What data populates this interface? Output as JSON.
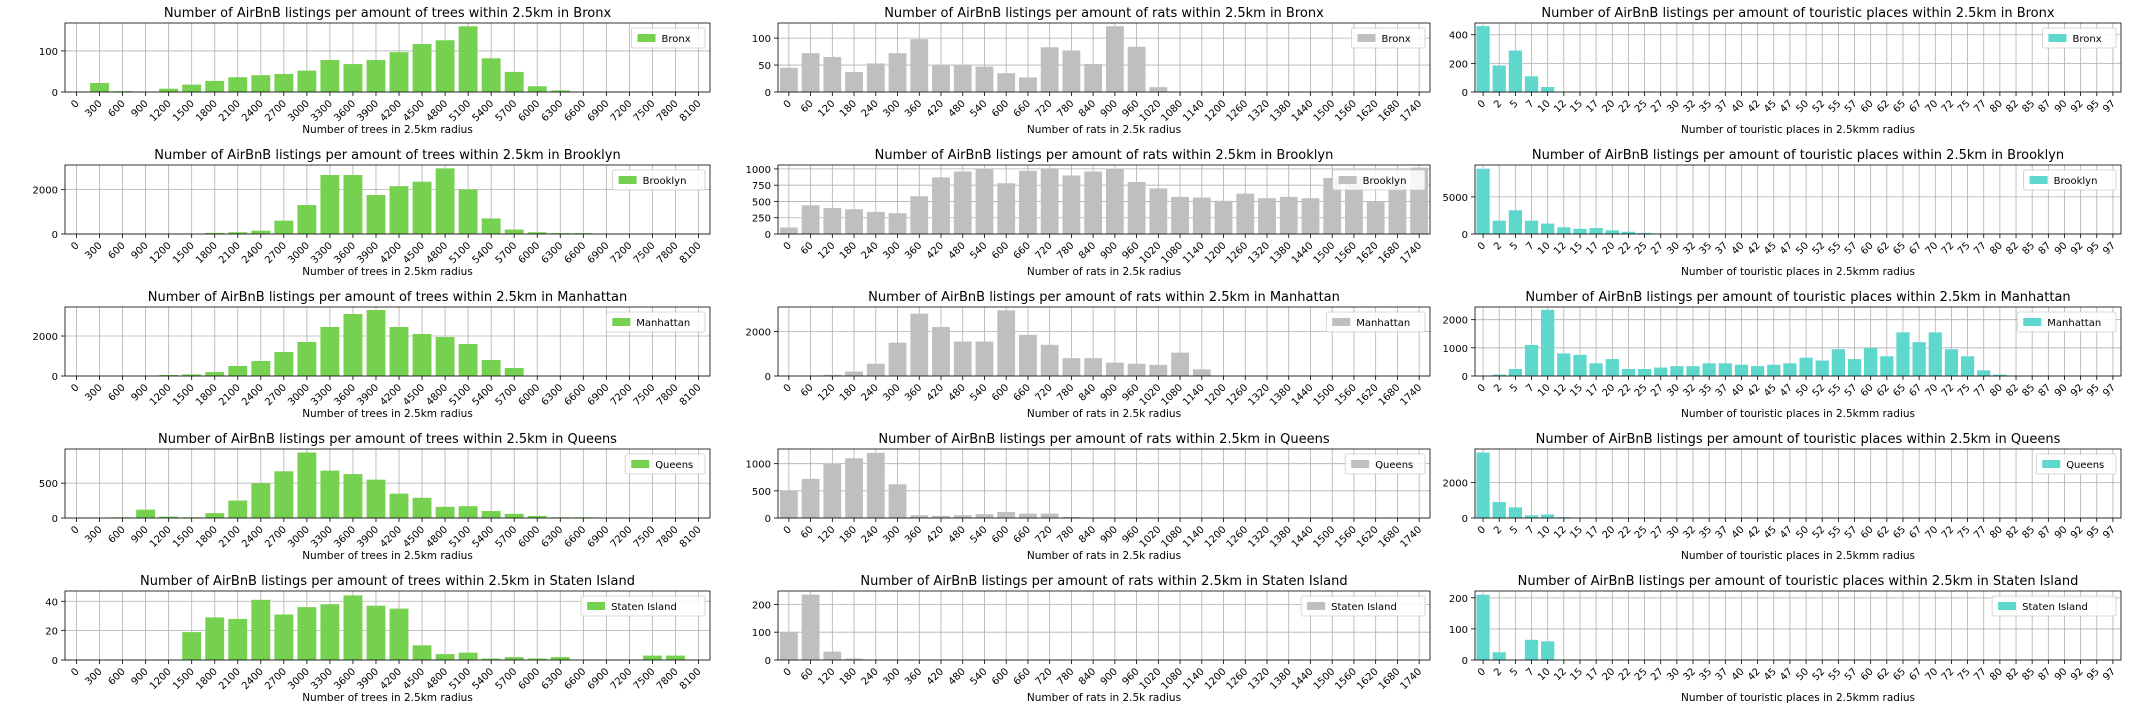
{
  "chart_data": [
    {
      "type": "bar",
      "title": "Number of AirBnB listings per amount of trees within 2.5km in Bronx",
      "xlabel": "Number of trees in 2.5km radius",
      "legend": "Bronx",
      "legend_position": "top-right",
      "color": "#77d150",
      "grid": true,
      "categories": [
        "0",
        "300",
        "600",
        "900",
        "1200",
        "1500",
        "1800",
        "2100",
        "2400",
        "2700",
        "3000",
        "3300",
        "3600",
        "3900",
        "4200",
        "4500",
        "4800",
        "5100",
        "5400",
        "5700",
        "6000",
        "6300",
        "6600",
        "6900",
        "7200",
        "7500",
        "7800",
        "8100"
      ],
      "values": [
        0,
        22,
        2,
        0,
        8,
        18,
        27,
        36,
        41,
        44,
        52,
        78,
        68,
        78,
        97,
        117,
        126,
        160,
        82,
        49,
        14,
        4,
        0,
        0,
        0,
        0,
        0,
        0
      ],
      "yticks": [
        0,
        100
      ],
      "ylim": [
        0,
        168
      ]
    },
    {
      "type": "bar",
      "title": "Number of AirBnB listings per amount of rats within 2.5km in Bronx",
      "xlabel": "Number of rats in 2.5k radius",
      "legend": "Bronx",
      "legend_position": "top-right",
      "color": "#bfbfbf",
      "grid": true,
      "categories": [
        "0",
        "60",
        "120",
        "180",
        "240",
        "300",
        "360",
        "420",
        "480",
        "540",
        "600",
        "660",
        "720",
        "780",
        "840",
        "900",
        "960",
        "1020",
        "1080",
        "1140",
        "1200",
        "1260",
        "1320",
        "1380",
        "1440",
        "1500",
        "1560",
        "1620",
        "1680",
        "1740"
      ],
      "values": [
        45,
        72,
        65,
        37,
        53,
        72,
        98,
        50,
        50,
        47,
        35,
        27,
        83,
        77,
        52,
        122,
        84,
        9,
        0,
        0,
        0,
        0,
        0,
        0,
        0,
        0,
        0,
        0,
        0,
        0
      ],
      "yticks": [
        0,
        50,
        100
      ],
      "ylim": [
        0,
        128
      ]
    },
    {
      "type": "bar",
      "title": "Number of AirBnB listings per amount of touristic places within 2.5km in Bronx",
      "xlabel": "Number of touristic places in 2.5kmm radius",
      "legend": "Bronx",
      "legend_position": "top-right",
      "color": "#5ed8cc",
      "grid": true,
      "categories": [
        "0",
        "2",
        "5",
        "7",
        "10",
        "12",
        "15",
        "17",
        "20",
        "22",
        "25",
        "27",
        "30",
        "32",
        "35",
        "37",
        "40",
        "42",
        "45",
        "47",
        "50",
        "52",
        "55",
        "57",
        "60",
        "62",
        "65",
        "67",
        "70",
        "72",
        "75",
        "77",
        "80",
        "82",
        "85",
        "87",
        "90",
        "92",
        "95",
        "97"
      ],
      "values": [
        460,
        185,
        290,
        110,
        35,
        0,
        0,
        0,
        0,
        0,
        0,
        0,
        0,
        0,
        0,
        0,
        0,
        0,
        0,
        0,
        0,
        0,
        0,
        0,
        0,
        0,
        0,
        0,
        0,
        0,
        0,
        0,
        0,
        0,
        0,
        0,
        0,
        0,
        0,
        0
      ],
      "yticks": [
        0,
        200,
        400
      ],
      "ylim": [
        0,
        482
      ]
    },
    {
      "type": "bar",
      "title": "Number of AirBnB listings per amount of trees within 2.5km in Brooklyn",
      "xlabel": "Number of trees in 2.5km radius",
      "legend": "Brooklyn",
      "legend_position": "top-right",
      "color": "#77d150",
      "grid": true,
      "categories": [
        "0",
        "300",
        "600",
        "900",
        "1200",
        "1500",
        "1800",
        "2100",
        "2400",
        "2700",
        "3000",
        "3300",
        "3600",
        "3900",
        "4200",
        "4500",
        "4800",
        "5100",
        "5400",
        "5700",
        "6000",
        "6300",
        "6600",
        "6900",
        "7200",
        "7500",
        "7800",
        "8100"
      ],
      "values": [
        0,
        0,
        0,
        0,
        0,
        0,
        50,
        80,
        150,
        600,
        1300,
        2650,
        2650,
        1750,
        2150,
        2350,
        2950,
        2000,
        700,
        200,
        80,
        40,
        40,
        0,
        0,
        0,
        0,
        0
      ],
      "yticks": [
        0,
        2000
      ],
      "ylim": [
        0,
        3100
      ]
    },
    {
      "type": "bar",
      "title": "Number of AirBnB listings per amount of rats within 2.5km in Brooklyn",
      "xlabel": "Number of rats in 2.5k radius",
      "legend": "Brooklyn",
      "legend_position": "top-right",
      "color": "#bfbfbf",
      "grid": true,
      "categories": [
        "0",
        "60",
        "120",
        "180",
        "240",
        "300",
        "360",
        "420",
        "480",
        "540",
        "600",
        "660",
        "720",
        "780",
        "840",
        "900",
        "960",
        "1020",
        "1080",
        "1140",
        "1200",
        "1260",
        "1320",
        "1380",
        "1440",
        "1500",
        "1560",
        "1620",
        "1680",
        "1740"
      ],
      "values": [
        100,
        440,
        400,
        380,
        340,
        320,
        580,
        870,
        960,
        1000,
        780,
        970,
        1010,
        900,
        960,
        1000,
        800,
        700,
        570,
        560,
        510,
        620,
        550,
        570,
        550,
        860,
        880,
        490,
        860,
        1020
      ],
      "yticks": [
        0,
        250,
        500,
        750,
        1000
      ],
      "ylim": [
        0,
        1060
      ]
    },
    {
      "type": "bar",
      "title": "Number of AirBnB listings per amount of touristic places within 2.5km in Brooklyn",
      "xlabel": "Number of touristic places in 2.5kmm radius",
      "legend": "Brooklyn",
      "legend_position": "top-right",
      "color": "#5ed8cc",
      "grid": true,
      "categories": [
        "0",
        "2",
        "5",
        "7",
        "10",
        "12",
        "15",
        "17",
        "20",
        "22",
        "25",
        "27",
        "30",
        "32",
        "35",
        "37",
        "40",
        "42",
        "45",
        "47",
        "50",
        "52",
        "55",
        "57",
        "60",
        "62",
        "65",
        "67",
        "70",
        "72",
        "75",
        "77",
        "80",
        "82",
        "85",
        "87",
        "90",
        "92",
        "95",
        "97"
      ],
      "values": [
        8800,
        1800,
        3200,
        1800,
        1400,
        900,
        700,
        800,
        500,
        300,
        150,
        0,
        0,
        0,
        0,
        0,
        0,
        0,
        0,
        0,
        0,
        0,
        0,
        0,
        0,
        0,
        0,
        0,
        0,
        0,
        0,
        0,
        0,
        0,
        0,
        0,
        0,
        0,
        0,
        0
      ],
      "yticks": [
        0,
        5000
      ],
      "ylim": [
        0,
        9300
      ]
    },
    {
      "type": "bar",
      "title": "Number of AirBnB listings per amount of trees within 2.5km in Manhattan",
      "xlabel": "Number of trees in 2.5km radius",
      "legend": "Manhattan",
      "legend_position": "top-right",
      "color": "#77d150",
      "grid": true,
      "categories": [
        "0",
        "300",
        "600",
        "900",
        "1200",
        "1500",
        "1800",
        "2100",
        "2400",
        "2700",
        "3000",
        "3300",
        "3600",
        "3900",
        "4200",
        "4500",
        "4800",
        "5100",
        "5400",
        "5700",
        "6000",
        "6300",
        "6600",
        "6900",
        "7200",
        "7500",
        "7800",
        "8100"
      ],
      "values": [
        0,
        0,
        0,
        0,
        50,
        80,
        200,
        500,
        750,
        1200,
        1700,
        2450,
        3100,
        3300,
        2450,
        2100,
        1950,
        1600,
        800,
        400,
        0,
        0,
        0,
        0,
        0,
        0,
        0,
        0
      ],
      "yticks": [
        0,
        2000
      ],
      "ylim": [
        0,
        3450
      ]
    },
    {
      "type": "bar",
      "title": "Number of AirBnB listings per amount of rats within 2.5km in Manhattan",
      "xlabel": "Number of rats in 2.5k radius",
      "legend": "Manhattan",
      "legend_position": "top-right",
      "color": "#bfbfbf",
      "grid": true,
      "categories": [
        "0",
        "60",
        "120",
        "180",
        "240",
        "300",
        "360",
        "420",
        "480",
        "540",
        "600",
        "660",
        "720",
        "780",
        "840",
        "900",
        "960",
        "1020",
        "1080",
        "1140",
        "1200",
        "1260",
        "1320",
        "1380",
        "1440",
        "1500",
        "1560",
        "1620",
        "1680",
        "1740"
      ],
      "values": [
        0,
        0,
        50,
        200,
        550,
        1500,
        2800,
        2200,
        1550,
        1550,
        2950,
        1850,
        1400,
        800,
        800,
        600,
        550,
        500,
        1050,
        300,
        0,
        0,
        0,
        0,
        0,
        0,
        0,
        0,
        0,
        0
      ],
      "yticks": [
        0,
        2000
      ],
      "ylim": [
        0,
        3100
      ]
    },
    {
      "type": "bar",
      "title": "Number of AirBnB listings per amount of touristic places within 2.5km in Manhattan",
      "xlabel": "Number of touristic places in 2.5kmm radius",
      "legend": "Manhattan",
      "legend_position": "top-right",
      "color": "#5ed8cc",
      "grid": true,
      "categories": [
        "0",
        "2",
        "5",
        "7",
        "10",
        "12",
        "15",
        "17",
        "20",
        "22",
        "25",
        "27",
        "30",
        "32",
        "35",
        "37",
        "40",
        "42",
        "45",
        "47",
        "50",
        "52",
        "55",
        "57",
        "60",
        "62",
        "65",
        "67",
        "70",
        "72",
        "75",
        "77",
        "80",
        "82",
        "85",
        "87",
        "90",
        "92",
        "95",
        "97"
      ],
      "values": [
        0,
        50,
        250,
        1100,
        2350,
        800,
        750,
        450,
        600,
        250,
        250,
        300,
        350,
        350,
        450,
        450,
        400,
        350,
        400,
        450,
        650,
        550,
        950,
        600,
        1000,
        700,
        1550,
        1200,
        1550,
        950,
        700,
        200,
        50,
        0,
        0,
        0,
        0,
        0,
        0,
        0
      ],
      "yticks": [
        0,
        1000,
        2000
      ],
      "ylim": [
        0,
        2450
      ]
    },
    {
      "type": "bar",
      "title": "Number of AirBnB listings per amount of trees within 2.5km in Queens",
      "xlabel": "Number of trees in 2.5km radius",
      "legend": "Queens",
      "legend_position": "top-right",
      "color": "#77d150",
      "grid": true,
      "categories": [
        "0",
        "300",
        "600",
        "900",
        "1200",
        "1500",
        "1800",
        "2100",
        "2400",
        "2700",
        "3000",
        "3300",
        "3600",
        "3900",
        "4200",
        "4500",
        "4800",
        "5100",
        "5400",
        "5700",
        "6000",
        "6300",
        "6600",
        "6900",
        "7200",
        "7500",
        "7800",
        "8100"
      ],
      "values": [
        0,
        0,
        10,
        120,
        20,
        10,
        70,
        250,
        500,
        670,
        940,
        680,
        630,
        550,
        350,
        290,
        160,
        170,
        100,
        60,
        30,
        10,
        10,
        0,
        0,
        0,
        0,
        0
      ],
      "yticks": [
        0,
        500
      ],
      "ylim": [
        0,
        990
      ]
    },
    {
      "type": "bar",
      "title": "Number of AirBnB listings per amount of rats within 2.5km in Queens",
      "xlabel": "Number of rats in 2.5k radius",
      "legend": "Queens",
      "legend_position": "top-right",
      "color": "#bfbfbf",
      "grid": true,
      "categories": [
        "0",
        "60",
        "120",
        "180",
        "240",
        "300",
        "360",
        "420",
        "480",
        "540",
        "600",
        "660",
        "720",
        "780",
        "840",
        "900",
        "960",
        "1020",
        "1080",
        "1140",
        "1200",
        "1260",
        "1320",
        "1380",
        "1440",
        "1500",
        "1560",
        "1620",
        "1680",
        "1740"
      ],
      "values": [
        500,
        720,
        1000,
        1100,
        1200,
        620,
        50,
        40,
        50,
        70,
        110,
        80,
        80,
        20,
        0,
        0,
        0,
        0,
        0,
        0,
        0,
        0,
        0,
        0,
        0,
        0,
        0,
        0,
        0,
        0
      ],
      "yticks": [
        0,
        500,
        1000
      ],
      "ylim": [
        0,
        1270
      ]
    },
    {
      "type": "bar",
      "title": "Number of AirBnB listings per amount of touristic places within 2.5km in Queens",
      "xlabel": "Number of touristic places in 2.5kmm radius",
      "legend": "Queens",
      "legend_position": "top-right",
      "color": "#5ed8cc",
      "grid": true,
      "categories": [
        "0",
        "2",
        "5",
        "7",
        "10",
        "12",
        "15",
        "17",
        "20",
        "22",
        "25",
        "27",
        "30",
        "32",
        "35",
        "37",
        "40",
        "42",
        "45",
        "47",
        "50",
        "52",
        "55",
        "57",
        "60",
        "62",
        "65",
        "67",
        "70",
        "72",
        "75",
        "77",
        "80",
        "82",
        "85",
        "87",
        "90",
        "92",
        "95",
        "97"
      ],
      "values": [
        3700,
        900,
        600,
        150,
        200,
        50,
        0,
        0,
        0,
        0,
        0,
        0,
        0,
        0,
        0,
        0,
        0,
        0,
        0,
        0,
        0,
        0,
        0,
        0,
        0,
        0,
        0,
        0,
        0,
        0,
        0,
        0,
        0,
        0,
        0,
        0,
        0,
        0,
        0,
        0
      ],
      "yticks": [
        0,
        2000
      ],
      "ylim": [
        0,
        3900
      ]
    },
    {
      "type": "bar",
      "title": "Number of AirBnB listings per amount of trees within 2.5km in Staten Island",
      "xlabel": "Number of trees in 2.5km radius",
      "legend": "Staten Island",
      "legend_position": "top-right",
      "color": "#77d150",
      "grid": true,
      "categories": [
        "0",
        "300",
        "600",
        "900",
        "1200",
        "1500",
        "1800",
        "2100",
        "2400",
        "2700",
        "3000",
        "3300",
        "3600",
        "3900",
        "4200",
        "4500",
        "4800",
        "5100",
        "5400",
        "5700",
        "6000",
        "6300",
        "6600",
        "6900",
        "7200",
        "7500",
        "7800",
        "8100"
      ],
      "values": [
        0,
        0,
        0,
        0,
        0,
        19,
        29,
        28,
        41,
        31,
        36,
        38,
        44,
        37,
        35,
        10,
        4,
        5,
        1,
        2,
        1,
        2,
        0,
        0,
        0,
        3,
        3,
        0
      ],
      "yticks": [
        0,
        20,
        40
      ],
      "ylim": [
        0,
        47
      ]
    },
    {
      "type": "bar",
      "title": "Number of AirBnB listings per amount of rats within 2.5km in Staten Island",
      "xlabel": "Number of rats in 2.5k radius",
      "legend": "Staten Island",
      "legend_position": "top-right",
      "color": "#bfbfbf",
      "grid": true,
      "categories": [
        "0",
        "60",
        "120",
        "180",
        "240",
        "300",
        "360",
        "420",
        "480",
        "540",
        "600",
        "660",
        "720",
        "780",
        "840",
        "900",
        "960",
        "1020",
        "1080",
        "1140",
        "1200",
        "1260",
        "1320",
        "1380",
        "1440",
        "1500",
        "1560",
        "1620",
        "1680",
        "1740"
      ],
      "values": [
        100,
        235,
        30,
        5,
        0,
        0,
        0,
        0,
        0,
        0,
        0,
        0,
        0,
        0,
        0,
        0,
        0,
        0,
        0,
        0,
        0,
        0,
        0,
        0,
        0,
        0,
        0,
        0,
        0,
        0
      ],
      "yticks": [
        0,
        100,
        200
      ],
      "ylim": [
        0,
        248
      ]
    },
    {
      "type": "bar",
      "title": "Number of AirBnB listings per amount of touristic places within 2.5km in Staten Island",
      "xlabel": "Number of touristic places in 2.5kmm radius",
      "legend": "Staten Island",
      "legend_position": "top-right",
      "color": "#5ed8cc",
      "grid": true,
      "categories": [
        "0",
        "2",
        "5",
        "7",
        "10",
        "12",
        "15",
        "17",
        "20",
        "22",
        "25",
        "27",
        "30",
        "32",
        "35",
        "37",
        "40",
        "42",
        "45",
        "47",
        "50",
        "52",
        "55",
        "57",
        "60",
        "62",
        "65",
        "67",
        "70",
        "72",
        "75",
        "77",
        "80",
        "82",
        "85",
        "87",
        "90",
        "92",
        "95",
        "97"
      ],
      "values": [
        210,
        25,
        0,
        65,
        60,
        0,
        0,
        0,
        0,
        0,
        0,
        0,
        0,
        0,
        0,
        0,
        0,
        0,
        0,
        0,
        0,
        0,
        0,
        0,
        0,
        0,
        0,
        0,
        0,
        0,
        0,
        0,
        0,
        0,
        0,
        0,
        0,
        0,
        0,
        0
      ],
      "yticks": [
        0,
        100,
        200
      ],
      "ylim": [
        0,
        222
      ]
    }
  ]
}
